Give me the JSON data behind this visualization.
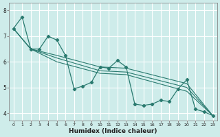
{
  "title": "",
  "xlabel": "Humidex (Indice chaleur)",
  "bg_color": "#ceecea",
  "grid_color": "#ffffff",
  "line_color": "#2a7a6f",
  "marker_color": "#2a7a6f",
  "xlim": [
    -0.5,
    23.5
  ],
  "ylim": [
    3.7,
    8.3
  ],
  "xticks": [
    0,
    1,
    2,
    3,
    4,
    5,
    6,
    7,
    8,
    9,
    10,
    11,
    12,
    13,
    14,
    15,
    16,
    17,
    18,
    19,
    20,
    21,
    22,
    23
  ],
  "yticks": [
    4,
    5,
    6,
    7,
    8
  ],
  "series": [
    [
      0,
      7.3
    ],
    [
      1,
      7.75
    ],
    [
      2,
      6.5
    ],
    [
      3,
      6.5
    ],
    [
      4,
      7.0
    ],
    [
      5,
      6.85
    ],
    [
      6,
      6.25
    ],
    [
      7,
      4.95
    ],
    [
      8,
      5.05
    ],
    [
      9,
      5.2
    ],
    [
      10,
      5.8
    ],
    [
      11,
      5.75
    ],
    [
      12,
      6.05
    ],
    [
      13,
      5.8
    ],
    [
      14,
      4.35
    ],
    [
      15,
      4.3
    ],
    [
      16,
      4.35
    ],
    [
      17,
      4.5
    ],
    [
      18,
      4.45
    ],
    [
      19,
      4.95
    ],
    [
      20,
      5.3
    ],
    [
      21,
      4.15
    ],
    [
      22,
      4.05
    ],
    [
      23,
      3.9
    ]
  ],
  "line2": [
    [
      0,
      7.3
    ],
    [
      2,
      6.5
    ],
    [
      5,
      6.25
    ],
    [
      10,
      5.8
    ],
    [
      13,
      5.75
    ],
    [
      20,
      5.15
    ],
    [
      23,
      3.9
    ]
  ],
  "line3": [
    [
      0,
      7.3
    ],
    [
      2,
      6.5
    ],
    [
      5,
      6.15
    ],
    [
      10,
      5.65
    ],
    [
      13,
      5.6
    ],
    [
      20,
      5.0
    ],
    [
      23,
      3.9
    ]
  ],
  "line4": [
    [
      0,
      7.3
    ],
    [
      2,
      6.5
    ],
    [
      5,
      6.0
    ],
    [
      10,
      5.55
    ],
    [
      13,
      5.5
    ],
    [
      20,
      4.85
    ],
    [
      23,
      3.9
    ]
  ]
}
